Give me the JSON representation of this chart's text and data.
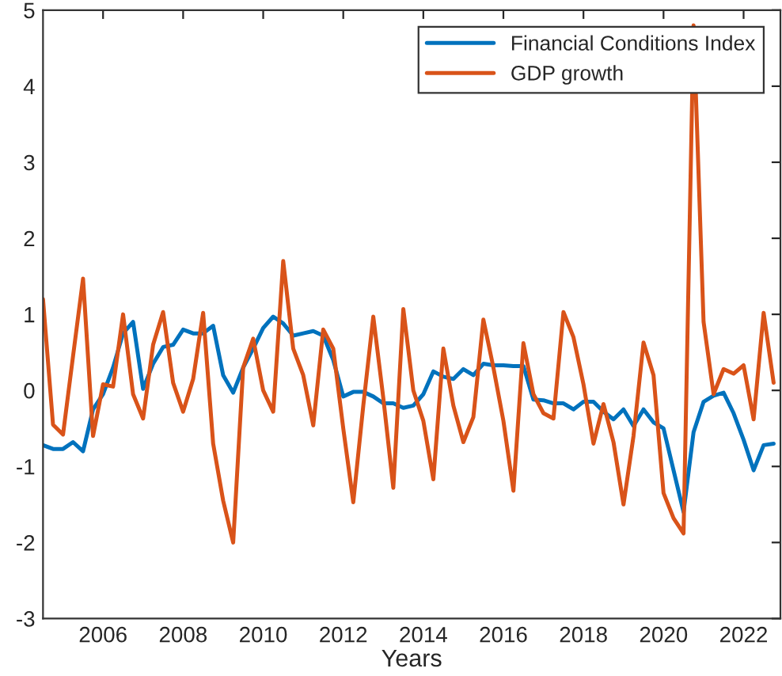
{
  "chart_data": {
    "type": "line",
    "xlabel": "Years",
    "x": [
      2004.5,
      2004.75,
      2005.0,
      2005.25,
      2005.5,
      2005.75,
      2006.0,
      2006.25,
      2006.5,
      2006.75,
      2007.0,
      2007.25,
      2007.5,
      2007.75,
      2008.0,
      2008.25,
      2008.5,
      2008.75,
      2009.0,
      2009.25,
      2009.5,
      2009.75,
      2010.0,
      2010.25,
      2010.5,
      2010.75,
      2011.0,
      2011.25,
      2011.5,
      2011.75,
      2012.0,
      2012.25,
      2012.5,
      2012.75,
      2013.0,
      2013.25,
      2013.5,
      2013.75,
      2014.0,
      2014.25,
      2014.5,
      2014.75,
      2015.0,
      2015.25,
      2015.5,
      2015.75,
      2016.0,
      2016.25,
      2016.5,
      2016.75,
      2017.0,
      2017.25,
      2017.5,
      2017.75,
      2018.0,
      2018.25,
      2018.5,
      2018.75,
      2019.0,
      2019.25,
      2019.5,
      2019.75,
      2020.0,
      2020.25,
      2020.5,
      2020.75,
      2021.0,
      2021.25,
      2021.5,
      2021.75,
      2022.0,
      2022.25,
      2022.5,
      2022.75
    ],
    "series": [
      {
        "name": "Financial Conditions Index",
        "color": "#0072bd",
        "values": [
          -0.72,
          -0.77,
          -0.77,
          -0.68,
          -0.8,
          -0.25,
          -0.05,
          0.3,
          0.75,
          0.9,
          0.02,
          0.35,
          0.57,
          0.6,
          0.8,
          0.75,
          0.75,
          0.85,
          0.2,
          -0.03,
          0.3,
          0.55,
          0.82,
          0.97,
          0.88,
          0.72,
          0.75,
          0.78,
          0.72,
          0.4,
          -0.08,
          -0.02,
          -0.02,
          -0.08,
          -0.17,
          -0.17,
          -0.23,
          -0.2,
          -0.05,
          0.25,
          0.18,
          0.15,
          0.28,
          0.2,
          0.35,
          0.33,
          0.33,
          0.32,
          0.32,
          -0.12,
          -0.13,
          -0.17,
          -0.17,
          -0.25,
          -0.15,
          -0.15,
          -0.28,
          -0.38,
          -0.25,
          -0.47,
          -0.25,
          -0.42,
          -0.5,
          -1.05,
          -1.6,
          -0.55,
          -0.15,
          -0.07,
          -0.03,
          -0.3,
          -0.65,
          -1.05,
          -0.72,
          -0.7
        ]
      },
      {
        "name": "GDP growth",
        "color": "#d95319",
        "values": [
          1.2,
          -0.45,
          -0.58,
          0.45,
          1.47,
          -0.6,
          0.08,
          0.05,
          1.0,
          -0.05,
          -0.37,
          0.6,
          1.03,
          0.1,
          -0.28,
          0.15,
          1.02,
          -0.7,
          -1.45,
          -2.0,
          0.3,
          0.68,
          0.0,
          -0.28,
          1.7,
          0.55,
          0.2,
          -0.46,
          0.8,
          0.55,
          -0.5,
          -1.47,
          -0.2,
          0.97,
          -0.1,
          -1.28,
          1.07,
          0.0,
          -0.4,
          -1.17,
          0.55,
          -0.2,
          -0.68,
          -0.35,
          0.93,
          0.3,
          -0.4,
          -1.32,
          0.62,
          -0.05,
          -0.3,
          -0.37,
          1.03,
          0.7,
          0.08,
          -0.7,
          -0.18,
          -0.68,
          -1.5,
          -0.6,
          0.63,
          0.2,
          -1.35,
          -1.68,
          -1.88,
          4.8,
          0.9,
          -0.05,
          0.28,
          0.22,
          0.33,
          -0.38,
          1.02,
          0.1
        ]
      }
    ],
    "xlim": [
      2004.5,
      2022.92
    ],
    "xticks": [
      2006,
      2008,
      2010,
      2012,
      2014,
      2016,
      2018,
      2020,
      2022
    ],
    "ylim": [
      -3,
      5
    ],
    "yticks": [
      -3,
      -2,
      -1,
      0,
      1,
      2,
      3,
      4,
      5
    ],
    "grid": false,
    "legend": "top right",
    "marker": "none",
    "line_style": "solid"
  }
}
